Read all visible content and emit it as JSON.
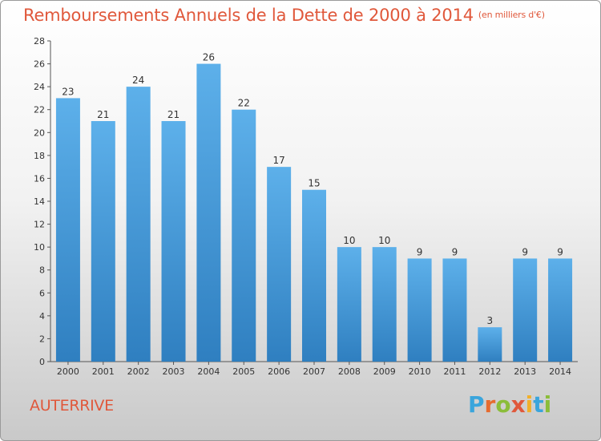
{
  "title": "Remboursements Annuels de la Dette de 2000 à 2014",
  "unit_note": "(en milliers d'€)",
  "commune": "AUTERRIVE",
  "logo": {
    "letters": [
      "P",
      "r",
      "o",
      "x",
      "i",
      "t",
      "i"
    ],
    "colors": [
      "#3aa5dc",
      "#e66b2f",
      "#8bbd3a",
      "#e0583b",
      "#f2b02a",
      "#3aa5dc",
      "#8bbd3a"
    ]
  },
  "colors": {
    "bar": "#4a9fde",
    "title": "#e0583b",
    "axis": "#333333"
  },
  "chart_data": {
    "type": "bar",
    "categories": [
      "2000",
      "2001",
      "2002",
      "2003",
      "2004",
      "2005",
      "2006",
      "2007",
      "2008",
      "2009",
      "2010",
      "2011",
      "2012",
      "2013",
      "2014"
    ],
    "values": [
      23,
      21,
      24,
      21,
      26,
      22,
      17,
      15,
      10,
      10,
      9,
      9,
      3,
      9,
      9
    ],
    "ylim": [
      0,
      28
    ],
    "yticks": [
      0,
      2,
      4,
      6,
      8,
      10,
      12,
      14,
      16,
      18,
      20,
      22,
      24,
      26,
      28
    ],
    "grid": false,
    "xlabel": "",
    "ylabel": ""
  }
}
